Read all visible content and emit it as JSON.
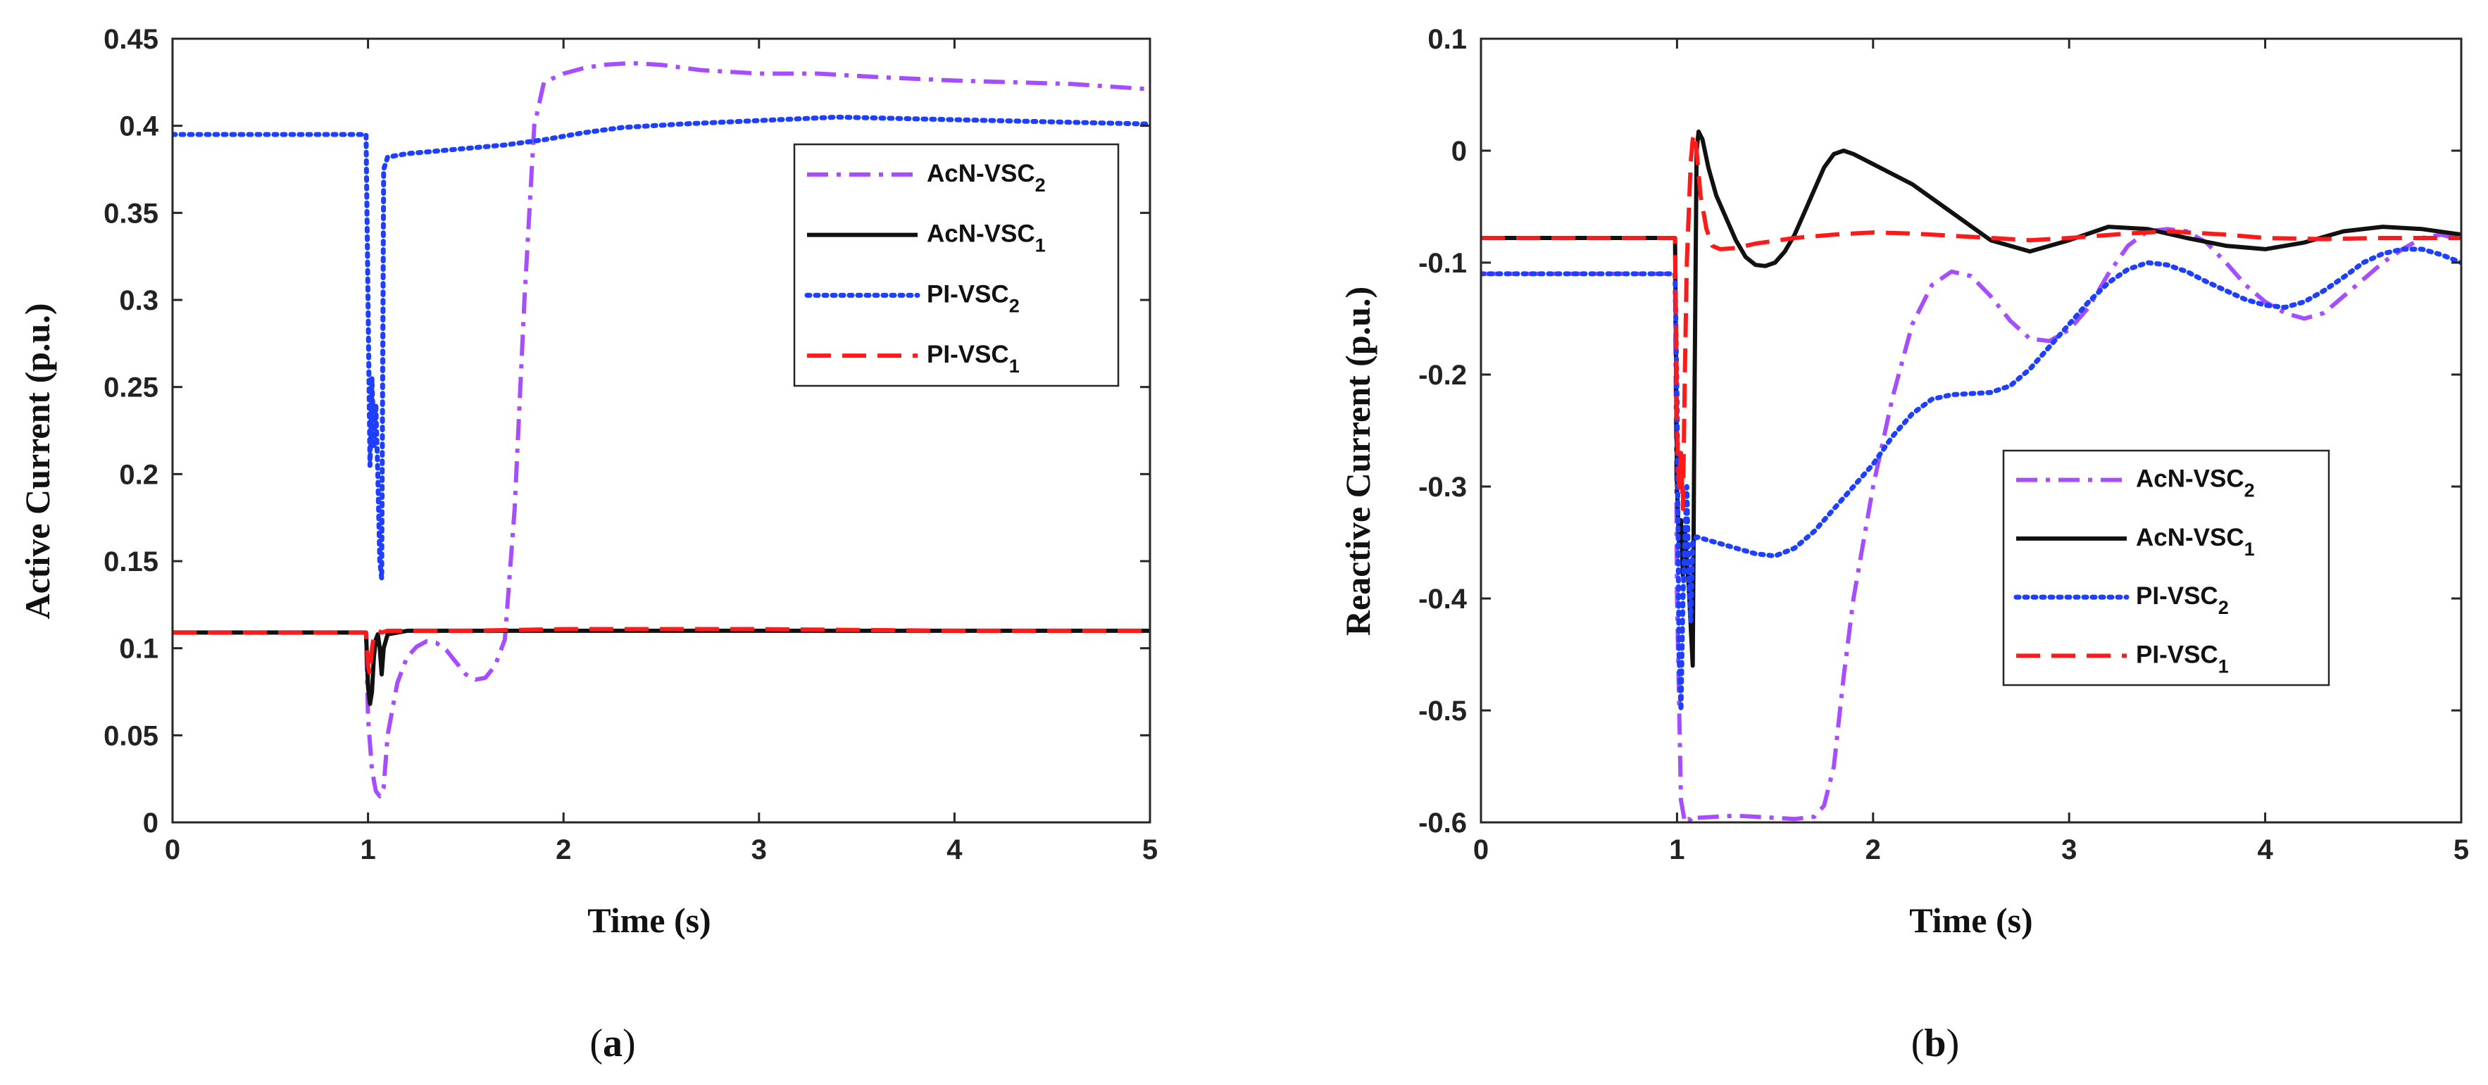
{
  "figure": {
    "background": "#ffffff"
  },
  "chart_data": [
    {
      "id": "a",
      "type": "line",
      "caption": "(a)",
      "caption_letter": "a",
      "title": "",
      "xlabel": "Time (s)",
      "ylabel": "Active Current (p.u.)",
      "xlim": [
        0,
        5
      ],
      "ylim": [
        0,
        0.45
      ],
      "xticks": [
        0,
        1,
        2,
        3,
        4,
        5
      ],
      "xticklabels": [
        "0",
        "1",
        "2",
        "3",
        "4",
        "5"
      ],
      "yticks": [
        0,
        0.05,
        0.1,
        0.15,
        0.2,
        0.25,
        0.3,
        0.35,
        0.4,
        0.45
      ],
      "yticklabels": [
        "0",
        "0.05",
        "0.1",
        "0.15",
        "0.2",
        "0.25",
        "0.3",
        "0.35",
        "0.4",
        "0.45"
      ],
      "grid": false,
      "legend": {
        "position": "upper-right",
        "order": [
          0,
          1,
          2,
          3
        ]
      },
      "series": [
        {
          "name": "AcN-VSC2",
          "base": "AcN-VSC",
          "sub": "2",
          "color": "#a64dff",
          "dash": "dashdot",
          "x": [
            0,
            0.99,
            1.0,
            1.02,
            1.04,
            1.06,
            1.08,
            1.1,
            1.15,
            1.2,
            1.25,
            1.3,
            1.35,
            1.4,
            1.45,
            1.5,
            1.55,
            1.6,
            1.65,
            1.7,
            1.75,
            1.8,
            1.85,
            1.9,
            2.0,
            2.1,
            2.2,
            2.35,
            2.5,
            2.7,
            3.0,
            3.3,
            3.6,
            4.0,
            4.3,
            4.6,
            5.0
          ],
          "y": [
            0.109,
            0.109,
            0.06,
            0.03,
            0.018,
            0.015,
            0.02,
            0.05,
            0.08,
            0.095,
            0.101,
            0.104,
            0.103,
            0.099,
            0.092,
            0.085,
            0.082,
            0.083,
            0.09,
            0.105,
            0.18,
            0.3,
            0.4,
            0.425,
            0.43,
            0.433,
            0.435,
            0.436,
            0.435,
            0.432,
            0.43,
            0.43,
            0.428,
            0.426,
            0.425,
            0.424,
            0.421
          ]
        },
        {
          "name": "AcN-VSC1",
          "base": "AcN-VSC",
          "sub": "1",
          "color": "#111111",
          "dash": "solid",
          "x": [
            0,
            0.99,
            1.0,
            1.01,
            1.02,
            1.03,
            1.04,
            1.05,
            1.06,
            1.07,
            1.08,
            1.1,
            1.15,
            1.2,
            1.5,
            2.0,
            3.0,
            4.0,
            5.0
          ],
          "y": [
            0.109,
            0.109,
            0.078,
            0.068,
            0.075,
            0.095,
            0.105,
            0.108,
            0.1,
            0.085,
            0.1,
            0.108,
            0.109,
            0.11,
            0.11,
            0.11,
            0.11,
            0.11,
            0.11
          ]
        },
        {
          "name": "PI-VSC2",
          "base": "PI-VSC",
          "sub": "2",
          "color": "#1f3fff",
          "dash": "dotted",
          "x": [
            0,
            0.99,
            1.0,
            1.01,
            1.02,
            1.03,
            1.04,
            1.05,
            1.06,
            1.07,
            1.08,
            1.1,
            1.2,
            1.3,
            1.5,
            1.7,
            1.9,
            2.1,
            2.3,
            2.6,
            3.0,
            3.4,
            3.8,
            4.2,
            4.6,
            5.0
          ],
          "y": [
            0.395,
            0.395,
            0.3,
            0.205,
            0.255,
            0.215,
            0.24,
            0.2,
            0.15,
            0.14,
            0.375,
            0.382,
            0.384,
            0.385,
            0.387,
            0.389,
            0.392,
            0.396,
            0.399,
            0.401,
            0.403,
            0.405,
            0.404,
            0.403,
            0.402,
            0.401
          ]
        },
        {
          "name": "PI-VSC1",
          "base": "PI-VSC",
          "sub": "1",
          "color": "#ff1a1a",
          "dash": "dashed",
          "x": [
            0,
            0.99,
            1.0,
            1.01,
            1.02,
            1.03,
            1.05,
            1.07,
            1.1,
            1.5,
            2.0,
            3.0,
            4.0,
            5.0
          ],
          "y": [
            0.109,
            0.109,
            0.09,
            0.085,
            0.1,
            0.107,
            0.11,
            0.109,
            0.11,
            0.11,
            0.111,
            0.111,
            0.11,
            0.11
          ]
        }
      ]
    },
    {
      "id": "b",
      "type": "line",
      "caption": "(b)",
      "caption_letter": "b",
      "title": "",
      "xlabel": "Time (s)",
      "ylabel": "Reactive Current (p.u.)",
      "xlim": [
        0,
        5
      ],
      "ylim": [
        -0.6,
        0.1
      ],
      "xticks": [
        0,
        1,
        2,
        3,
        4,
        5
      ],
      "xticklabels": [
        "0",
        "1",
        "2",
        "3",
        "4",
        "5"
      ],
      "yticks": [
        -0.6,
        -0.5,
        -0.4,
        -0.3,
        -0.2,
        -0.1,
        0,
        0.1
      ],
      "yticklabels": [
        "-0.6",
        "-0.5",
        "-0.4",
        "-0.3",
        "-0.2",
        "-0.1",
        "0",
        "0.1"
      ],
      "grid": false,
      "legend": {
        "position": "center-right",
        "order": [
          0,
          1,
          2,
          3
        ]
      },
      "series": [
        {
          "name": "AcN-VSC2",
          "base": "AcN-VSC",
          "sub": "2",
          "color": "#a64dff",
          "dash": "dashdot",
          "x": [
            0,
            0.99,
            1.0,
            1.02,
            1.04,
            1.06,
            1.08,
            1.1,
            1.2,
            1.3,
            1.4,
            1.5,
            1.6,
            1.7,
            1.75,
            1.8,
            1.85,
            1.9,
            2.0,
            2.1,
            2.2,
            2.3,
            2.4,
            2.5,
            2.6,
            2.7,
            2.8,
            2.9,
            3.0,
            3.1,
            3.2,
            3.3,
            3.4,
            3.5,
            3.6,
            3.7,
            3.8,
            3.9,
            4.0,
            4.1,
            4.2,
            4.3,
            4.4,
            4.5,
            4.6,
            4.7,
            4.8,
            4.9,
            5.0
          ],
          "y": [
            -0.11,
            -0.11,
            -0.4,
            -0.58,
            -0.6,
            -0.597,
            -0.6,
            -0.596,
            -0.595,
            -0.594,
            -0.595,
            -0.596,
            -0.597,
            -0.595,
            -0.585,
            -0.55,
            -0.47,
            -0.4,
            -0.3,
            -0.22,
            -0.155,
            -0.12,
            -0.108,
            -0.112,
            -0.13,
            -0.152,
            -0.168,
            -0.17,
            -0.16,
            -0.14,
            -0.11,
            -0.085,
            -0.072,
            -0.07,
            -0.072,
            -0.082,
            -0.1,
            -0.12,
            -0.135,
            -0.145,
            -0.15,
            -0.145,
            -0.13,
            -0.115,
            -0.1,
            -0.088,
            -0.078,
            -0.075,
            -0.08
          ]
        },
        {
          "name": "AcN-VSC1",
          "base": "AcN-VSC",
          "sub": "1",
          "color": "#111111",
          "dash": "solid",
          "x": [
            0,
            0.99,
            1.0,
            1.01,
            1.02,
            1.03,
            1.04,
            1.06,
            1.08,
            1.09,
            1.1,
            1.11,
            1.13,
            1.16,
            1.2,
            1.25,
            1.3,
            1.35,
            1.4,
            1.45,
            1.5,
            1.55,
            1.6,
            1.65,
            1.7,
            1.75,
            1.8,
            1.85,
            1.9,
            2.0,
            2.2,
            2.4,
            2.6,
            2.8,
            3.0,
            3.2,
            3.4,
            3.6,
            3.8,
            4.0,
            4.2,
            4.4,
            4.6,
            4.8,
            5.0
          ],
          "y": [
            -0.078,
            -0.078,
            -0.3,
            -0.35,
            -0.33,
            -0.38,
            -0.34,
            -0.39,
            -0.46,
            -0.2,
            0.0,
            0.017,
            0.01,
            -0.015,
            -0.04,
            -0.06,
            -0.08,
            -0.095,
            -0.102,
            -0.103,
            -0.1,
            -0.09,
            -0.075,
            -0.055,
            -0.035,
            -0.015,
            -0.003,
            0.0,
            -0.003,
            -0.012,
            -0.03,
            -0.055,
            -0.08,
            -0.09,
            -0.08,
            -0.068,
            -0.07,
            -0.078,
            -0.085,
            -0.088,
            -0.082,
            -0.072,
            -0.068,
            -0.07,
            -0.075
          ]
        },
        {
          "name": "PI-VSC2",
          "base": "PI-VSC",
          "sub": "2",
          "color": "#1f3fff",
          "dash": "dotted",
          "x": [
            0,
            0.99,
            1.0,
            1.01,
            1.02,
            1.03,
            1.04,
            1.05,
            1.06,
            1.07,
            1.08,
            1.1,
            1.2,
            1.3,
            1.4,
            1.5,
            1.6,
            1.7,
            1.8,
            1.9,
            2.0,
            2.1,
            2.2,
            2.3,
            2.4,
            2.5,
            2.6,
            2.7,
            2.8,
            2.9,
            3.0,
            3.1,
            3.2,
            3.3,
            3.4,
            3.5,
            3.6,
            3.7,
            3.8,
            3.9,
            4.0,
            4.1,
            4.2,
            4.3,
            4.4,
            4.5,
            4.6,
            4.7,
            4.8,
            4.9,
            5.0
          ],
          "y": [
            -0.11,
            -0.11,
            -0.22,
            -0.45,
            -0.5,
            -0.4,
            -0.35,
            -0.3,
            -0.38,
            -0.42,
            -0.35,
            -0.345,
            -0.35,
            -0.355,
            -0.36,
            -0.362,
            -0.355,
            -0.34,
            -0.32,
            -0.3,
            -0.28,
            -0.255,
            -0.235,
            -0.222,
            -0.218,
            -0.217,
            -0.216,
            -0.21,
            -0.195,
            -0.175,
            -0.155,
            -0.135,
            -0.118,
            -0.106,
            -0.1,
            -0.102,
            -0.108,
            -0.117,
            -0.125,
            -0.133,
            -0.138,
            -0.14,
            -0.135,
            -0.125,
            -0.113,
            -0.1,
            -0.092,
            -0.088,
            -0.088,
            -0.093,
            -0.1
          ]
        },
        {
          "name": "PI-VSC1",
          "base": "PI-VSC",
          "sub": "1",
          "color": "#ff1a1a",
          "dash": "dashed",
          "x": [
            0,
            0.99,
            1.0,
            1.01,
            1.02,
            1.03,
            1.04,
            1.05,
            1.07,
            1.08,
            1.09,
            1.1,
            1.12,
            1.15,
            1.18,
            1.22,
            1.3,
            1.4,
            1.6,
            1.8,
            2.0,
            2.2,
            2.5,
            2.8,
            3.0,
            3.3,
            3.5,
            3.8,
            4.0,
            4.3,
            4.6,
            5.0
          ],
          "y": [
            -0.078,
            -0.078,
            -0.25,
            -0.3,
            -0.27,
            -0.32,
            -0.2,
            -0.1,
            -0.01,
            0.01,
            0.015,
            0.0,
            -0.04,
            -0.07,
            -0.085,
            -0.088,
            -0.087,
            -0.083,
            -0.078,
            -0.075,
            -0.073,
            -0.074,
            -0.077,
            -0.08,
            -0.078,
            -0.074,
            -0.072,
            -0.075,
            -0.078,
            -0.079,
            -0.078,
            -0.078
          ]
        }
      ]
    }
  ]
}
